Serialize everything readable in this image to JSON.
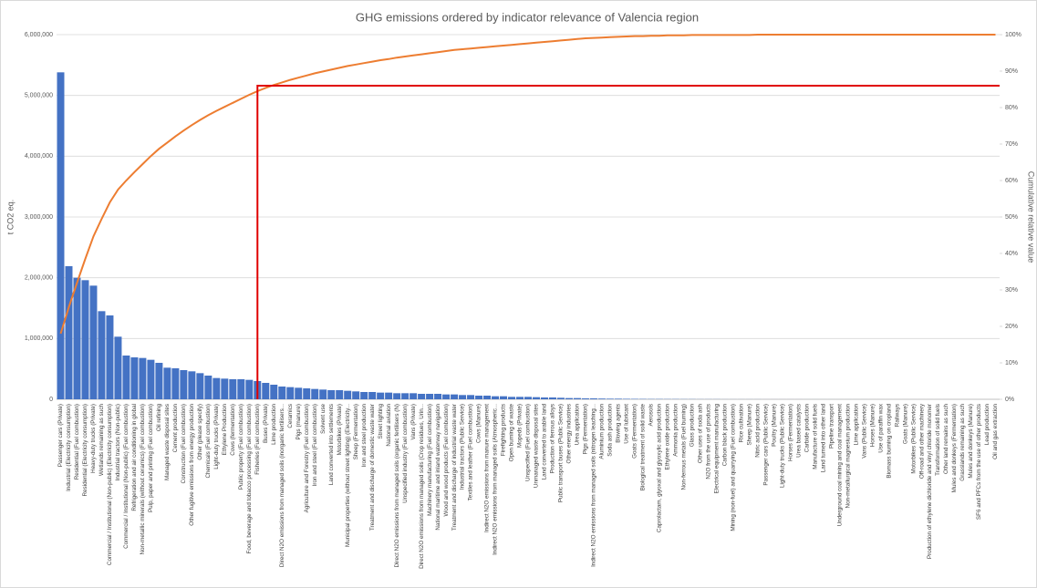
{
  "chart_data": {
    "type": "pareto",
    "title": "GHG emissions ordered by indicator relevance of Valencia region",
    "y_label": "t CO2 eq.",
    "y2_label": "Cumulative relative value",
    "categories": [
      "Passenger cars (Private)",
      "Industrial (Electricity consumption)",
      "Residential (Fuel combustion)",
      "Residential (Electricity consumption)",
      "Heavy-duty trucks (Private)",
      "Wetlands remaining as such",
      "Commercial / Institutional (Non-public) (Electricity consumption)",
      "Industrial tractors (Non-public)",
      "Commercial / Institutional (Non-public) (Fuel combustion)",
      "Refrigeration and air conditioning in global",
      "Non-metallic minerals (without ceramics) (Fuel combustion)",
      "Pulp, paper and printing (Fuel combustion)",
      "Oil refining",
      "Managed waste disposal sites",
      "Cement production",
      "Construction (Fuel combustion)",
      "Other fugitive emissions from energy production",
      "Other (please specify)",
      "Chemicals (Fuel combustion)",
      "Light-duty trucks (Private)",
      "Ethylene Production",
      "Cows (fermentation)",
      "Public property (Fuel combustion)",
      "Food, beverage and tobacco processing (Fuel combustion)",
      "Fisheries (Fuel combustion)",
      "Buses (Private)",
      "Lime production",
      "Direct N2O emissions from managed soils (inorganic fertilisers...",
      "Ceramics",
      "Pigs (manure)",
      "Agriculture and Forestry (Fuel combustion)",
      "Iron and steel (Fuel combustion)",
      "Solvent use",
      "Land converted into settlements",
      "Motorbikes (Private)",
      "Municipal properties (without street lighting) (Electricity...",
      "Sheep (Fermentation)",
      "Iron and steel production",
      "Treatment and discharge of domestic waste water",
      "Street lighting",
      "National aviation",
      "Direct N2O emissions from managed soils (organic fertilisers (N)",
      "Unspecified industry (Fuel combustion)",
      "Vans (Private)",
      "Direct N2O emissions from managed soils (Crop residues, Urin...",
      "Machinery manufacturing (Fuel combustion)",
      "National maritime and inland waterway navigation",
      "Wood and wood products (Fuel combustion)",
      "Treatment and discharge of industrial waste water",
      "Industrial tractors (Public Service)",
      "Textiles and leather (Fuel combustion)",
      "Cows (Manure)",
      "Indirect N2O emissions from manure management",
      "Indirect N2O emissions from managed soils (Atmospheric...",
      "Firefighting products",
      "Open burning of waste",
      "Mopeds (Private)",
      "Unspecified (Fuel combustion)",
      "Unmanaged waste disposal sites",
      "Land converted to arable land",
      "Production of ferrous alloys",
      "Public transport buses (Public Service)",
      "Other energy industries",
      "Urea application",
      "Pigs (Fermentation)",
      "Indirect N2O emissions from managed soils (nitrogen leaching...",
      "Aluminium production",
      "Soda ash production",
      "Blowing agents",
      "Use of lubricant",
      "Goats (Fermentation)",
      "Biological treatment of solid waste",
      "Aerosols",
      "Caprolactam, glyoxal and glyoxylic acid production",
      "Ethylene oxide production",
      "Ammonia production",
      "Non-ferrous metals (Fuel burning)",
      "Glass production",
      "Other uses of soda ash",
      "N2O from the use of products",
      "Electrical equipment manufacturing",
      "Carbon black production",
      "Mining (non-fuel) and quarrying (Fuel combustion)",
      "Rice cultivation",
      "Sheep (Manure)",
      "Nitric acid production",
      "Passenger cars (Public Service)",
      "Poultry (Manure)",
      "Light-duty trucks (Public Service)",
      "Horses (Fermentation)",
      "Urea based catalysts",
      "Carbide production",
      "Manufacture of solid fuels",
      "Land turned into other land",
      "Pipeline transport",
      "Underground coal mining and coal management",
      "Non-metallurgical magnesium production",
      "Lime application",
      "Vans (Public Service)",
      "Horses (Manure)",
      "Use of paraffin wax",
      "Biomass burning on cropland",
      "Railways",
      "Goats (Manure)",
      "Motorbikes (Public Service)",
      "Off-road and other machinery",
      "Production of ethylene dichloride and vinyl chloride monomer",
      "Transformation of solid fuels",
      "Other land remains as such",
      "Mules and donkeys (Fermentation)",
      "Grasslands remaining as such",
      "Mules and donkeys (Manure)",
      "SF6 and PFCs from the use of other products",
      "Lead production",
      "Oil and gas extraction"
    ],
    "series": [
      {
        "kind": "bar",
        "color": "#4472c4",
        "values": [
          5380000,
          2190000,
          2000000,
          1960000,
          1870000,
          1450000,
          1380000,
          1030000,
          720000,
          690000,
          680000,
          650000,
          600000,
          520000,
          510000,
          480000,
          460000,
          430000,
          390000,
          350000,
          340000,
          330000,
          330000,
          320000,
          300000,
          270000,
          240000,
          210000,
          200000,
          190000,
          180000,
          170000,
          160000,
          150000,
          150000,
          140000,
          130000,
          120000,
          120000,
          110000,
          110000,
          100000,
          100000,
          100000,
          90000,
          90000,
          90000,
          80000,
          80000,
          70000,
          70000,
          60000,
          60000,
          50000,
          50000,
          40000,
          40000,
          40000,
          35000,
          30000,
          30000,
          25000,
          20000,
          20000,
          15000,
          15000,
          12000,
          10000,
          10000,
          8000,
          7000,
          6000,
          5000,
          5000,
          4000,
          4000,
          3000,
          3000,
          2000,
          2000,
          2000,
          1000,
          1000,
          1000,
          1000,
          1000,
          500,
          500,
          500,
          500,
          500,
          300,
          300,
          300,
          300,
          200,
          200,
          200,
          200,
          100,
          100,
          100,
          100,
          100,
          100,
          50,
          50,
          50,
          50,
          20,
          20,
          20,
          10,
          10,
          0
        ]
      },
      {
        "kind": "line",
        "axis": "y2",
        "color": "#ed7d31",
        "values": [
          18,
          25.3,
          32,
          38.5,
          44.7,
          49.5,
          54,
          57.5,
          60,
          62.3,
          64.5,
          66.7,
          68.7,
          70.4,
          72.1,
          73.7,
          75.2,
          76.6,
          77.9,
          79.1,
          80.2,
          81.3,
          82.4,
          83.5,
          84.5,
          85.4,
          86.2,
          86.9,
          87.6,
          88.2,
          88.8,
          89.4,
          89.9,
          90.4,
          90.9,
          91.4,
          91.8,
          92.2,
          92.6,
          93,
          93.3,
          93.7,
          94,
          94.3,
          94.6,
          94.9,
          95.2,
          95.5,
          95.8,
          96,
          96.2,
          96.4,
          96.6,
          96.8,
          97,
          97.2,
          97.4,
          97.6,
          97.8,
          98,
          98.2,
          98.4,
          98.6,
          98.8,
          99,
          99.1,
          99.2,
          99.3,
          99.4,
          99.5,
          99.6,
          99.6,
          99.7,
          99.7,
          99.8,
          99.8,
          99.8,
          99.9,
          99.9,
          99.9,
          99.9,
          99.9,
          99.9,
          99.9,
          99.9,
          100,
          100,
          100,
          100,
          100,
          100,
          100,
          100,
          100,
          100,
          100,
          100,
          100,
          100,
          100,
          100,
          100,
          100,
          100,
          100,
          100,
          100,
          100,
          100,
          100,
          100,
          100,
          100,
          100,
          100
        ]
      }
    ],
    "reference": {
      "category": "Fisheries (Fuel combustion)",
      "value": 86,
      "color": "#e00000"
    },
    "ylim": [
      0,
      6000000
    ],
    "yticks": [
      0,
      {
        "value": 1000000,
        "label": "1,000,000"
      },
      {
        "value": 2000000,
        "label": "2,000,000"
      },
      {
        "value": 3000000,
        "label": "3,000,000"
      },
      {
        "value": 4000000,
        "label": "4,000,000"
      },
      {
        "value": 5000000,
        "label": "5,000,000"
      },
      {
        "value": 6000000,
        "label": "6,000,000"
      }
    ],
    "y2lim": [
      0,
      100
    ],
    "y2ticks": [
      {
        "value": 0,
        "label": "0%"
      },
      {
        "value": 10,
        "label": "10%"
      },
      {
        "value": 20,
        "label": "20%"
      },
      {
        "value": 30,
        "label": "30%"
      },
      {
        "value": 40,
        "label": "40%"
      },
      {
        "value": 50,
        "label": "50%"
      },
      {
        "value": 60,
        "label": "60%"
      },
      {
        "value": 70,
        "label": "70%"
      },
      {
        "value": 80,
        "label": "80%"
      },
      {
        "value": 90,
        "label": "90%"
      },
      {
        "value": 100,
        "label": "100%"
      }
    ],
    "grid": true
  }
}
